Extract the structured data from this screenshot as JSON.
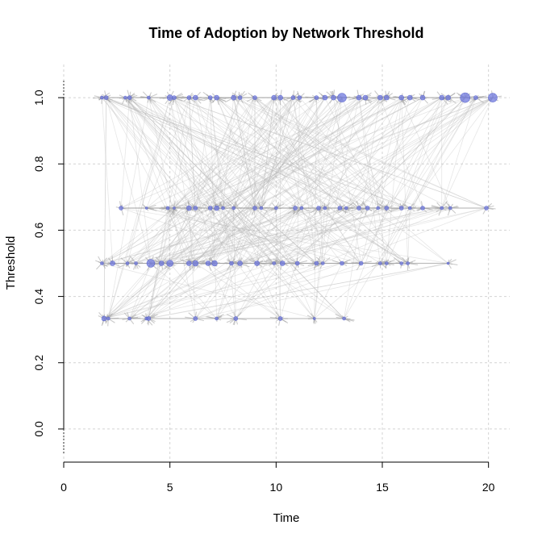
{
  "chart_data": {
    "type": "scatter",
    "title": "Time of Adoption by Network Threshold",
    "xlabel": "Time",
    "ylabel": "Threshold",
    "xlim": [
      0,
      21
    ],
    "ylim": [
      -0.1,
      1.1
    ],
    "xticks": [
      "0",
      "5",
      "10",
      "15",
      "20"
    ],
    "yticks": [
      "0.0",
      "0.2",
      "0.4",
      "0.6",
      "0.8",
      "1.0"
    ],
    "grid": true,
    "levels": [
      0.3333,
      0.5,
      0.6667,
      1.0
    ],
    "points": [
      {
        "x": 1.9,
        "y": 0.3333,
        "s": 3
      },
      {
        "x": 2.1,
        "y": 0.3333,
        "s": 2
      },
      {
        "x": 3.1,
        "y": 0.3333,
        "s": 2
      },
      {
        "x": 3.9,
        "y": 0.3333,
        "s": 2
      },
      {
        "x": 4.0,
        "y": 0.3333,
        "s": 2.5
      },
      {
        "x": 6.2,
        "y": 0.3333,
        "s": 2.5
      },
      {
        "x": 7.2,
        "y": 0.3333,
        "s": 2
      },
      {
        "x": 8.1,
        "y": 0.3333,
        "s": 2.5
      },
      {
        "x": 10.2,
        "y": 0.3333,
        "s": 2.5
      },
      {
        "x": 11.8,
        "y": 0.3333,
        "s": 1.5
      },
      {
        "x": 13.2,
        "y": 0.3333,
        "s": 2
      },
      {
        "x": 1.8,
        "y": 0.5,
        "s": 2
      },
      {
        "x": 2.3,
        "y": 0.5,
        "s": 3
      },
      {
        "x": 3.0,
        "y": 0.5,
        "s": 2
      },
      {
        "x": 3.4,
        "y": 0.5,
        "s": 2
      },
      {
        "x": 4.1,
        "y": 0.5,
        "s": 5
      },
      {
        "x": 4.6,
        "y": 0.5,
        "s": 3
      },
      {
        "x": 5.0,
        "y": 0.5,
        "s": 4
      },
      {
        "x": 5.9,
        "y": 0.5,
        "s": 3
      },
      {
        "x": 6.2,
        "y": 0.5,
        "s": 3.5
      },
      {
        "x": 6.8,
        "y": 0.5,
        "s": 3
      },
      {
        "x": 7.1,
        "y": 0.5,
        "s": 3.5
      },
      {
        "x": 7.9,
        "y": 0.5,
        "s": 2.5
      },
      {
        "x": 8.3,
        "y": 0.5,
        "s": 3
      },
      {
        "x": 9.1,
        "y": 0.5,
        "s": 3
      },
      {
        "x": 9.9,
        "y": 0.5,
        "s": 2
      },
      {
        "x": 10.3,
        "y": 0.5,
        "s": 3
      },
      {
        "x": 11.0,
        "y": 0.5,
        "s": 2.5
      },
      {
        "x": 11.9,
        "y": 0.5,
        "s": 2.5
      },
      {
        "x": 12.2,
        "y": 0.5,
        "s": 2
      },
      {
        "x": 13.1,
        "y": 0.5,
        "s": 2.5
      },
      {
        "x": 14.0,
        "y": 0.5,
        "s": 2.5
      },
      {
        "x": 14.9,
        "y": 0.5,
        "s": 2
      },
      {
        "x": 15.2,
        "y": 0.5,
        "s": 2
      },
      {
        "x": 15.9,
        "y": 0.5,
        "s": 2
      },
      {
        "x": 16.2,
        "y": 0.5,
        "s": 2
      },
      {
        "x": 18.1,
        "y": 0.5,
        "s": 1.5
      },
      {
        "x": 2.7,
        "y": 0.6667,
        "s": 2.5
      },
      {
        "x": 3.9,
        "y": 0.6667,
        "s": 1.5
      },
      {
        "x": 4.9,
        "y": 0.6667,
        "s": 2
      },
      {
        "x": 5.2,
        "y": 0.6667,
        "s": 1.5
      },
      {
        "x": 5.9,
        "y": 0.6667,
        "s": 3
      },
      {
        "x": 6.2,
        "y": 0.6667,
        "s": 2.5
      },
      {
        "x": 6.9,
        "y": 0.6667,
        "s": 2.5
      },
      {
        "x": 7.2,
        "y": 0.6667,
        "s": 3
      },
      {
        "x": 7.5,
        "y": 0.6667,
        "s": 2
      },
      {
        "x": 8.0,
        "y": 0.6667,
        "s": 2
      },
      {
        "x": 9.0,
        "y": 0.6667,
        "s": 2.5
      },
      {
        "x": 9.3,
        "y": 0.6667,
        "s": 2
      },
      {
        "x": 10.0,
        "y": 0.6667,
        "s": 2
      },
      {
        "x": 10.9,
        "y": 0.6667,
        "s": 2.5
      },
      {
        "x": 11.2,
        "y": 0.6667,
        "s": 2
      },
      {
        "x": 12.0,
        "y": 0.6667,
        "s": 2.5
      },
      {
        "x": 12.3,
        "y": 0.6667,
        "s": 2
      },
      {
        "x": 13.0,
        "y": 0.6667,
        "s": 2.5
      },
      {
        "x": 13.3,
        "y": 0.6667,
        "s": 2
      },
      {
        "x": 13.9,
        "y": 0.6667,
        "s": 2.5
      },
      {
        "x": 14.3,
        "y": 0.6667,
        "s": 2.5
      },
      {
        "x": 14.8,
        "y": 0.6667,
        "s": 2
      },
      {
        "x": 15.2,
        "y": 0.6667,
        "s": 2.5
      },
      {
        "x": 15.9,
        "y": 0.6667,
        "s": 2.5
      },
      {
        "x": 16.3,
        "y": 0.6667,
        "s": 2
      },
      {
        "x": 16.9,
        "y": 0.6667,
        "s": 2.5
      },
      {
        "x": 17.8,
        "y": 0.6667,
        "s": 2
      },
      {
        "x": 18.2,
        "y": 0.6667,
        "s": 2
      },
      {
        "x": 19.9,
        "y": 0.6667,
        "s": 2.5
      },
      {
        "x": 1.8,
        "y": 1.0,
        "s": 2
      },
      {
        "x": 2.0,
        "y": 1.0,
        "s": 2.5
      },
      {
        "x": 2.9,
        "y": 1.0,
        "s": 2
      },
      {
        "x": 3.1,
        "y": 1.0,
        "s": 2.5
      },
      {
        "x": 4.0,
        "y": 1.0,
        "s": 2
      },
      {
        "x": 5.0,
        "y": 1.0,
        "s": 3.5
      },
      {
        "x": 5.2,
        "y": 1.0,
        "s": 2.5
      },
      {
        "x": 5.9,
        "y": 1.0,
        "s": 2.5
      },
      {
        "x": 6.2,
        "y": 1.0,
        "s": 3
      },
      {
        "x": 6.9,
        "y": 1.0,
        "s": 2.5
      },
      {
        "x": 7.2,
        "y": 1.0,
        "s": 3
      },
      {
        "x": 8.0,
        "y": 1.0,
        "s": 3
      },
      {
        "x": 8.3,
        "y": 1.0,
        "s": 2.5
      },
      {
        "x": 9.0,
        "y": 1.0,
        "s": 2.5
      },
      {
        "x": 9.9,
        "y": 1.0,
        "s": 3
      },
      {
        "x": 10.2,
        "y": 1.0,
        "s": 3
      },
      {
        "x": 10.8,
        "y": 1.0,
        "s": 2.5
      },
      {
        "x": 11.1,
        "y": 1.0,
        "s": 2.5
      },
      {
        "x": 11.9,
        "y": 1.0,
        "s": 2.5
      },
      {
        "x": 12.3,
        "y": 1.0,
        "s": 3
      },
      {
        "x": 12.7,
        "y": 1.0,
        "s": 3
      },
      {
        "x": 13.1,
        "y": 1.0,
        "s": 5.5
      },
      {
        "x": 13.9,
        "y": 1.0,
        "s": 3
      },
      {
        "x": 14.2,
        "y": 1.0,
        "s": 3
      },
      {
        "x": 14.9,
        "y": 1.0,
        "s": 3
      },
      {
        "x": 15.2,
        "y": 1.0,
        "s": 3
      },
      {
        "x": 15.9,
        "y": 1.0,
        "s": 3
      },
      {
        "x": 16.3,
        "y": 1.0,
        "s": 3
      },
      {
        "x": 16.9,
        "y": 1.0,
        "s": 3
      },
      {
        "x": 17.8,
        "y": 1.0,
        "s": 3
      },
      {
        "x": 18.1,
        "y": 1.0,
        "s": 3
      },
      {
        "x": 18.9,
        "y": 1.0,
        "s": 6
      },
      {
        "x": 19.4,
        "y": 1.0,
        "s": 2.5
      },
      {
        "x": 20.2,
        "y": 1.0,
        "s": 5.5
      }
    ]
  },
  "colors": {
    "point_fill": "#6f78dd",
    "point_stroke": "#4a55c8",
    "edge": "#b8b8b8",
    "grid": "#d3d3d3",
    "axis": "#555555"
  }
}
